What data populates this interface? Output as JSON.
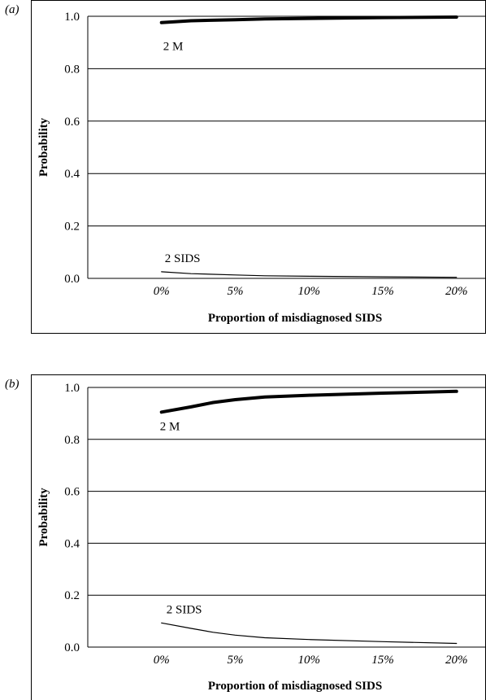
{
  "chart_data": [
    {
      "panel": "(a)",
      "type": "line",
      "xlabel": "Proportion of misdiagnosed SIDS",
      "ylabel": "Probability",
      "x_ticks": [
        "0%",
        "5%",
        "10%",
        "15%",
        "20%"
      ],
      "y_ticks": [
        "0.0",
        "0.2",
        "0.4",
        "0.6",
        "0.8",
        "1.0"
      ],
      "xlim": [
        -5,
        22
      ],
      "ylim": [
        0,
        1
      ],
      "grid": "horizontal",
      "series": [
        {
          "name": "2 M",
          "x": [
            0,
            2,
            5,
            7,
            10,
            15,
            20
          ],
          "y": [
            0.976,
            0.983,
            0.987,
            0.99,
            0.992,
            0.995,
            0.997
          ],
          "color": "#000000",
          "weight": "thick"
        },
        {
          "name": "2 SIDS",
          "x": [
            0,
            2,
            5,
            7,
            10,
            15,
            20
          ],
          "y": [
            0.025,
            0.018,
            0.013,
            0.01,
            0.008,
            0.006,
            0.004
          ],
          "color": "#000000",
          "weight": "thin"
        }
      ]
    },
    {
      "panel": "(b)",
      "type": "line",
      "xlabel": "Proportion of misdiagnosed SIDS",
      "ylabel": "Probability",
      "x_ticks": [
        "0%",
        "5%",
        "10%",
        "15%",
        "20%"
      ],
      "y_ticks": [
        "0.0",
        "0.2",
        "0.4",
        "0.6",
        "0.8",
        "1.0"
      ],
      "xlim": [
        -5,
        22
      ],
      "ylim": [
        0,
        1
      ],
      "grid": "horizontal",
      "series": [
        {
          "name": "2 M",
          "x": [
            0,
            2,
            3.5,
            5,
            7,
            10,
            15,
            20
          ],
          "y": [
            0.905,
            0.925,
            0.942,
            0.953,
            0.963,
            0.97,
            0.978,
            0.985
          ],
          "color": "#000000",
          "weight": "thick"
        },
        {
          "name": "2 SIDS",
          "x": [
            0,
            2,
            3.5,
            5,
            7,
            10,
            15,
            20
          ],
          "y": [
            0.093,
            0.072,
            0.057,
            0.046,
            0.036,
            0.029,
            0.021,
            0.014
          ],
          "color": "#000000",
          "weight": "thin"
        }
      ]
    }
  ]
}
